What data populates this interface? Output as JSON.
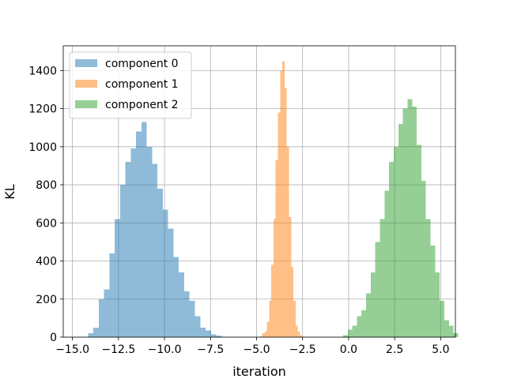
{
  "chart_data": {
    "type": "histogram",
    "xlabel": "iteration",
    "ylabel": "KL",
    "xlim": [
      -15.5,
      5.8
    ],
    "ylim": [
      0,
      1530
    ],
    "xticks": [
      -15.0,
      -12.5,
      -10.0,
      -7.5,
      -5.0,
      -2.5,
      0.0,
      2.5,
      5.0
    ],
    "xtick_labels": [
      "−15.0",
      "−12.5",
      "−10.0",
      "−7.5",
      "−5.0",
      "−2.5",
      "0.0",
      "2.5",
      "5.0"
    ],
    "yticks": [
      0,
      200,
      400,
      600,
      800,
      1000,
      1200,
      1400
    ],
    "ytick_labels": [
      "0",
      "200",
      "400",
      "600",
      "800",
      "1000",
      "1200",
      "1400"
    ],
    "grid": true,
    "legend_position": "top-left",
    "series": [
      {
        "name": "component 0",
        "color": "#1f77b4",
        "alpha": 0.5,
        "bin_start": -14.15,
        "bin_width": 0.29,
        "counts": [
          20,
          50,
          200,
          250,
          440,
          620,
          800,
          920,
          990,
          1080,
          1130,
          1000,
          910,
          780,
          670,
          570,
          420,
          340,
          240,
          190,
          110,
          50,
          35,
          15,
          8,
          3
        ]
      },
      {
        "name": "component 1",
        "color": "#ff7f0e",
        "alpha": 0.5,
        "bin_start": -4.8,
        "bin_width": 0.12,
        "counts": [
          5,
          20,
          30,
          80,
          190,
          380,
          620,
          930,
          1180,
          1400,
          1450,
          1310,
          1000,
          630,
          370,
          190,
          60,
          30,
          8
        ]
      },
      {
        "name": "component 2",
        "color": "#2ca02c",
        "alpha": 0.5,
        "bin_start": -0.3,
        "bin_width": 0.25,
        "counts": [
          10,
          40,
          60,
          110,
          140,
          230,
          340,
          500,
          620,
          770,
          920,
          1000,
          1120,
          1200,
          1250,
          1210,
          1010,
          820,
          620,
          480,
          340,
          190,
          90,
          60,
          20
        ]
      }
    ]
  }
}
